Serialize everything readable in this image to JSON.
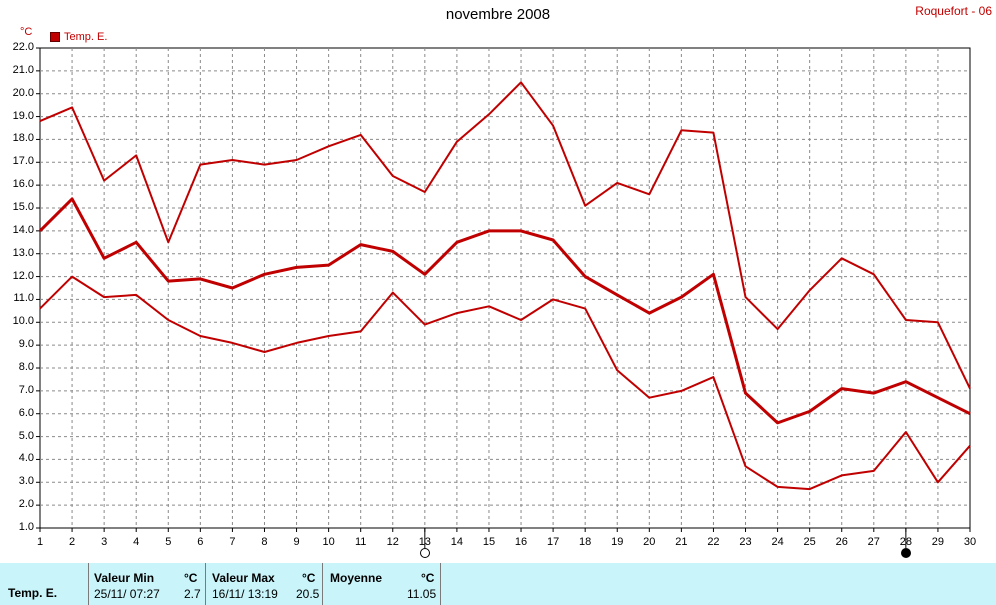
{
  "header": {
    "title": "novembre 2008",
    "station": "Roquefort - 06",
    "unit": "°C"
  },
  "legend": [
    {
      "name": "Temp. E.",
      "color": "#c00000"
    }
  ],
  "moon_phases": [
    {
      "day": 13,
      "phase": "full-moon"
    },
    {
      "day": 28,
      "phase": "new-moon"
    }
  ],
  "chart_data": {
    "type": "line",
    "title": "novembre 2008",
    "ylabel": "°C",
    "xlim": [
      1,
      30
    ],
    "ylim": [
      1.0,
      22.0
    ],
    "ytick_step": 1.0,
    "grid": true,
    "legend_placement": "top-left",
    "x": [
      1,
      2,
      3,
      4,
      5,
      6,
      7,
      8,
      9,
      10,
      11,
      12,
      13,
      14,
      15,
      16,
      17,
      18,
      19,
      20,
      21,
      22,
      23,
      24,
      25,
      26,
      27,
      28,
      29,
      30
    ],
    "series": [
      {
        "name": "Temp. E.",
        "role": "max",
        "color": "#c00000",
        "values": [
          18.8,
          19.4,
          16.2,
          17.3,
          13.5,
          16.9,
          17.1,
          16.9,
          17.1,
          17.7,
          18.2,
          16.4,
          15.7,
          17.9,
          19.1,
          20.5,
          18.6,
          15.1,
          16.1,
          15.6,
          18.4,
          18.3,
          11.1,
          9.7,
          11.4,
          12.8,
          12.1,
          10.1,
          10.0,
          7.1
        ]
      },
      {
        "name": "Temp. E.",
        "role": "mean",
        "color": "#c00000",
        "values": [
          14.0,
          15.4,
          12.8,
          13.5,
          11.8,
          11.9,
          11.5,
          12.1,
          12.4,
          12.5,
          13.4,
          13.1,
          12.1,
          13.5,
          14.0,
          14.0,
          13.6,
          12.0,
          11.2,
          10.4,
          11.1,
          12.1,
          6.9,
          5.6,
          6.1,
          7.1,
          6.9,
          7.4,
          6.7,
          6.0
        ]
      },
      {
        "name": "Temp. E.",
        "role": "min",
        "color": "#c00000",
        "values": [
          10.6,
          12.0,
          11.1,
          11.2,
          10.1,
          9.4,
          9.1,
          8.7,
          9.1,
          9.4,
          9.6,
          11.3,
          9.9,
          10.4,
          10.7,
          10.1,
          11.0,
          10.6,
          7.9,
          6.7,
          7.0,
          7.6,
          3.7,
          2.8,
          2.7,
          3.3,
          3.5,
          5.2,
          3.0,
          4.6
        ]
      }
    ]
  },
  "stats": {
    "row_label": "Temp. E.",
    "min": {
      "label": "Valeur Min",
      "unit": "°C",
      "when": "25/11/  07:27",
      "value": "2.7"
    },
    "max": {
      "label": "Valeur Max",
      "unit": "°C",
      "when": "16/11/  13:19",
      "value": "20.5"
    },
    "avg": {
      "label": "Moyenne",
      "unit": "°C",
      "value": "11.05"
    }
  }
}
